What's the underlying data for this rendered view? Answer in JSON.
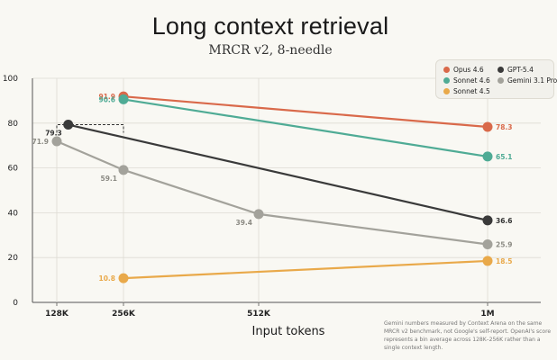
{
  "chart_data": {
    "type": "line",
    "title": "Long context retrieval",
    "subtitle": "MRCR v2, 8-needle",
    "xlabel": "Input tokens",
    "ylabel": "",
    "x_ticks": [
      {
        "label": "128K",
        "value": 128
      },
      {
        "label": "256K",
        "value": 256
      },
      {
        "label": "512K",
        "value": 512
      },
      {
        "label": "1M",
        "value": 1024
      }
    ],
    "ylim": [
      0,
      100
    ],
    "y_ticks": [
      0,
      20,
      40,
      60,
      80,
      100
    ],
    "grid": true,
    "legend_position": "top-right",
    "series": [
      {
        "name": "Opus 4.6",
        "color": "#d9694a",
        "points": [
          {
            "x": 256,
            "y": 91.9,
            "label": "91.9"
          },
          {
            "x": 1024,
            "y": 78.3,
            "label": "78.3"
          }
        ]
      },
      {
        "name": "Sonnet 4.6",
        "color": "#4fab95",
        "points": [
          {
            "x": 256,
            "y": 90.6,
            "label": "90.6"
          },
          {
            "x": 1024,
            "y": 65.1,
            "label": "65.1"
          }
        ]
      },
      {
        "name": "Sonnet 4.5",
        "color": "#e9a94a",
        "points": [
          {
            "x": 256,
            "y": 10.8,
            "label": "10.8"
          },
          {
            "x": 1024,
            "y": 18.5,
            "label": "18.5"
          }
        ]
      },
      {
        "name": "GPT-5.4",
        "color": "#3a3a3a",
        "points": [
          {
            "x": 150,
            "y": 79.3,
            "label": "79.3"
          },
          {
            "x": 1024,
            "y": 36.6,
            "label": "36.6"
          }
        ]
      },
      {
        "name": "Gemini 3.1 Pro",
        "color": "#a3a29b",
        "points": [
          {
            "x": 128,
            "y": 71.9,
            "label": "71.9"
          },
          {
            "x": 256,
            "y": 59.1,
            "label": "59.1"
          },
          {
            "x": 512,
            "y": 39.4,
            "label": "39.4"
          },
          {
            "x": 1024,
            "y": 25.9,
            "label": "25.9"
          }
        ]
      }
    ],
    "annotation": {
      "type": "bracket",
      "series": "GPT-5.4",
      "x_range": [
        128,
        256
      ],
      "y": 79.3
    }
  },
  "legend": [
    "Opus 4.6",
    "GPT-5.4",
    "Sonnet 4.6",
    "Gemini 3.1 Pro",
    "Sonnet 4.5"
  ],
  "footnote": "Gemini numbers measured by Context Arena on the same MRCR v2 benchmark, not Google's self-report. OpenAI's score represents a bin average across 128K–256K rather than a single context length."
}
